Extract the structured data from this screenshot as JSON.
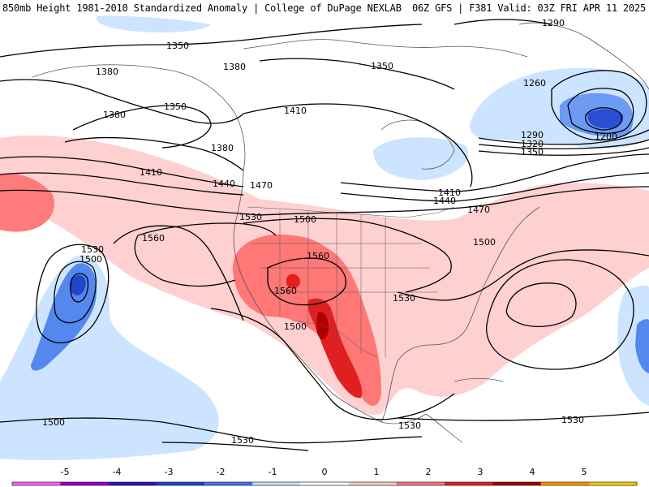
{
  "header": {
    "title": "850mb Height 1981-2010 Standardized Anomaly | College of DuPage NEXLAB",
    "valid": "06Z GFS | F381 Valid: 03Z FRI APR 11 2025"
  },
  "colorbar": {
    "ticks": [
      "-5",
      "-4",
      "-3",
      "-2",
      "-1",
      "0",
      "1",
      "2",
      "3",
      "4",
      "5"
    ],
    "colors": [
      "#ff66ff",
      "#9900cc",
      "#3311bb",
      "#2244cc",
      "#4477ee",
      "#cce4ff",
      "#ffffff",
      "#ffcccc",
      "#ff7777",
      "#dd2222",
      "#aa0000",
      "#ff9900",
      "#ffcc00"
    ]
  },
  "contours": {
    "labels": [
      "1290",
      "1350",
      "1380",
      "1380",
      "1350",
      "1380",
      "1380",
      "1410",
      "1350",
      "1410",
      "1260",
      "1200",
      "1290",
      "1320",
      "1350",
      "1410",
      "1440",
      "1440",
      "1470",
      "1470",
      "1530",
      "1500",
      "1560",
      "1500",
      "1560",
      "1560",
      "1530",
      "1530",
      "1500",
      "1500",
      "1530",
      "1530",
      "1500",
      "1530"
    ]
  },
  "anomaly_colors": {
    "pos1": "#ffd0d0",
    "pos2": "#ff8080",
    "pos3": "#e02020",
    "pos4": "#b00000",
    "neg1": "#cce4ff",
    "neg2": "#5588ee",
    "neg3": "#2244cc"
  }
}
